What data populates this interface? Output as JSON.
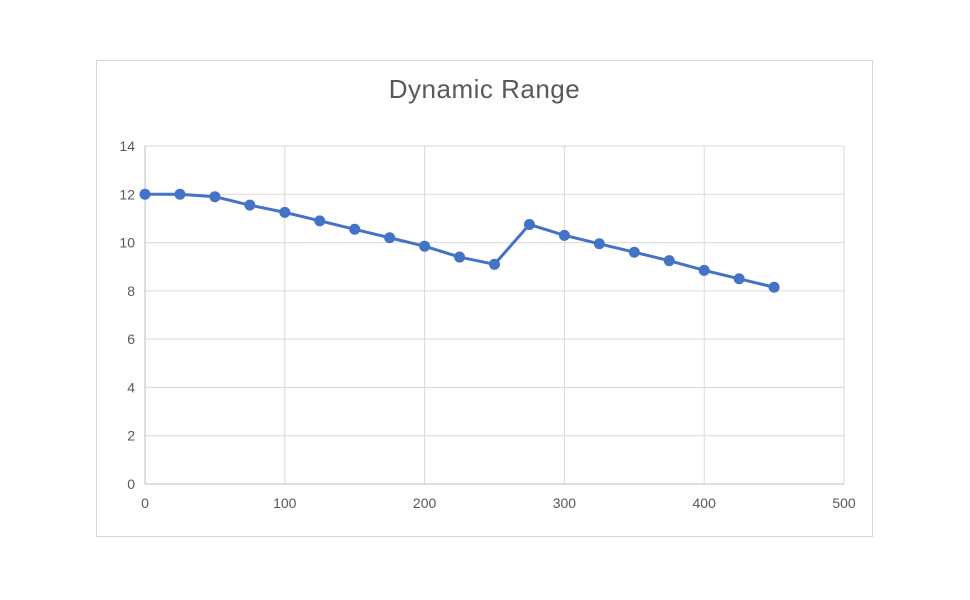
{
  "page": {
    "background_color": "#ffffff"
  },
  "chart_style": {
    "frame_border_color": "#d6d6d6",
    "plot_background": "#ffffff",
    "title_color": "#595959",
    "tick_label_color": "#595959",
    "gridline_color": "#d9d9d9",
    "axis_line_color": "#bfbfbf",
    "series_color": "#4472c4",
    "marker_fill": "#4472c4"
  },
  "chart_data": {
    "type": "line",
    "title": "Dynamic Range",
    "xlabel": "",
    "ylabel": "",
    "xlim": [
      0,
      500
    ],
    "ylim": [
      0,
      14
    ],
    "x_ticks": [
      0,
      100,
      200,
      300,
      400,
      500
    ],
    "y_ticks": [
      0,
      2,
      4,
      6,
      8,
      10,
      12,
      14
    ],
    "grid": true,
    "legend": false,
    "marker": "circle",
    "x": [
      0,
      25,
      50,
      75,
      100,
      125,
      150,
      175,
      200,
      225,
      250,
      275,
      300,
      325,
      350,
      375,
      400,
      425,
      450
    ],
    "values": [
      12,
      12,
      11.9,
      11.55,
      11.25,
      10.9,
      10.55,
      10.2,
      9.85,
      9.4,
      9.1,
      10.75,
      10.3,
      9.95,
      9.6,
      9.25,
      8.85,
      8.5,
      8.15
    ]
  }
}
